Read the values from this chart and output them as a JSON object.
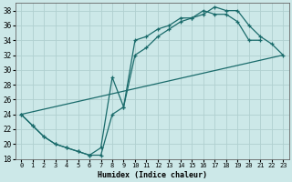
{
  "xlabel": "Humidex (Indice chaleur)",
  "bg_color": "#cce8e8",
  "grid_color": "#b0d0d0",
  "line_color": "#1a6b6b",
  "xlim": [
    -0.5,
    23.5
  ],
  "ylim": [
    18,
    39
  ],
  "xticks": [
    0,
    1,
    2,
    3,
    4,
    5,
    6,
    7,
    8,
    9,
    10,
    11,
    12,
    13,
    14,
    15,
    16,
    17,
    18,
    19,
    20,
    21,
    22,
    23
  ],
  "yticks": [
    18,
    20,
    22,
    24,
    26,
    28,
    30,
    32,
    34,
    36,
    38
  ],
  "curve1_x": [
    0,
    1,
    2,
    3,
    4,
    5,
    6,
    7,
    8,
    9,
    10,
    11,
    12,
    13,
    14,
    15,
    16,
    17,
    18,
    19,
    20,
    21
  ],
  "curve1_y": [
    24,
    22.5,
    21,
    20,
    19.5,
    19,
    18.5,
    19.5,
    29,
    25,
    34,
    34.5,
    35.5,
    36,
    37,
    37,
    38,
    37.5,
    37.5,
    36.5,
    34,
    34
  ],
  "curve2_x": [
    0,
    1,
    2,
    3,
    4,
    5,
    6,
    7,
    8,
    9,
    10,
    11,
    12,
    13,
    14,
    15,
    16,
    17,
    18,
    19,
    20,
    21,
    22,
    23
  ],
  "curve2_y": [
    24,
    22.5,
    21,
    20,
    19.5,
    19,
    18.5,
    18.5,
    24,
    25,
    32,
    33,
    34.5,
    35.5,
    36.5,
    37,
    37.5,
    38.5,
    38,
    38,
    36,
    34.5,
    33.5,
    32
  ],
  "curve3_x": [
    0,
    23
  ],
  "curve3_y": [
    24,
    32
  ]
}
